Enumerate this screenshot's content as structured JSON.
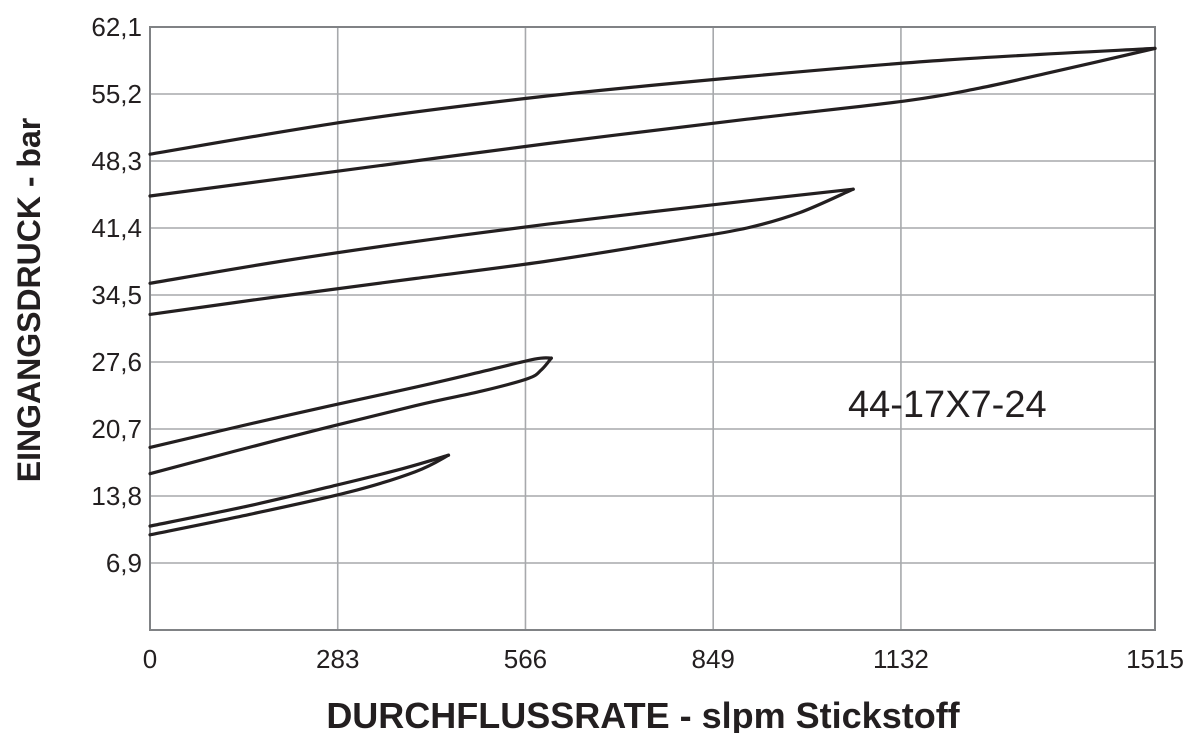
{
  "chart_data": {
    "type": "line",
    "xlabel": "DURCHFLUSSRATE - slpm Stickstoff",
    "ylabel": "EINGANGSDRUCK - bar",
    "xlim": [
      0,
      1515
    ],
    "ylim": [
      0,
      62.1
    ],
    "x_ticks": [
      "0",
      "283",
      "566",
      "849",
      "1132",
      "1515"
    ],
    "x_tick_values": [
      0,
      283,
      566,
      849,
      1132,
      1515
    ],
    "y_ticks": [
      "6,9",
      "13,8",
      "20,7",
      "27,6",
      "34,5",
      "41,4",
      "48,3",
      "55,2",
      "62,1"
    ],
    "y_tick_values": [
      6.9,
      13.8,
      20.7,
      27.6,
      34.5,
      41.4,
      48.3,
      55.2,
      62.1
    ],
    "grid": true,
    "annotation": "44-17X7-24",
    "series": [
      {
        "x": [
          0,
          300,
          600,
          900,
          1200,
          1515
        ],
        "y": [
          49.0,
          52.4,
          55.0,
          57.0,
          58.7,
          59.9
        ]
      },
      {
        "x": [
          0,
          300,
          600,
          900,
          1140,
          1250,
          1350,
          1515
        ],
        "y": [
          44.7,
          47.4,
          50.1,
          52.6,
          54.5,
          55.8,
          57.3,
          59.9
        ]
      },
      {
        "x": [
          0,
          200,
          400,
          600,
          850,
          1060
        ],
        "y": [
          35.7,
          38.0,
          40.0,
          41.8,
          43.8,
          45.4
        ]
      },
      {
        "x": [
          0,
          200,
          400,
          600,
          800,
          900,
          980,
          1060
        ],
        "y": [
          32.5,
          34.4,
          36.2,
          38.0,
          40.2,
          41.4,
          43.0,
          45.4
        ]
      },
      {
        "x": [
          0,
          200,
          400,
          500,
          580,
          605
        ],
        "y": [
          18.8,
          22.0,
          25.0,
          26.6,
          27.9,
          28.0
        ]
      },
      {
        "x": [
          0,
          200,
          400,
          500,
          570,
          590,
          605
        ],
        "y": [
          16.1,
          19.7,
          23.1,
          24.6,
          25.9,
          26.8,
          28.0
        ]
      },
      {
        "x": [
          0,
          150,
          280,
          380,
          450
        ],
        "y": [
          10.7,
          12.8,
          14.9,
          16.6,
          18.0
        ]
      },
      {
        "x": [
          0,
          150,
          300,
          400,
          450
        ],
        "y": [
          9.8,
          11.9,
          14.2,
          16.3,
          18.0
        ]
      }
    ]
  }
}
